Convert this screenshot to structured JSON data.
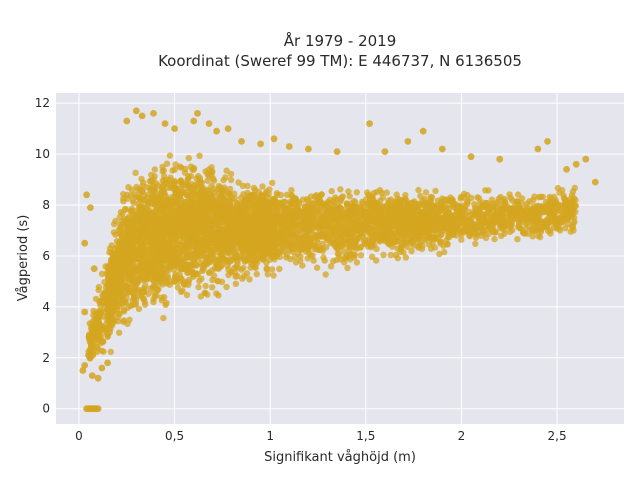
{
  "chart_data": {
    "type": "scatter",
    "title_lines": [
      "År 1979 - 2019",
      "Koordinat (Sweref 99 TM): E 446737, N 6136505"
    ],
    "xlabel": "Signifikant våghöjd (m)",
    "ylabel": "Vågperiod (s)",
    "xlim": [
      -0.12,
      2.85
    ],
    "ylim": [
      -0.6,
      12.4
    ],
    "x_ticks": [
      0,
      0.5,
      1,
      1.5,
      2,
      2.5
    ],
    "x_tick_labels": [
      "0",
      "0,5",
      "1",
      "1,5",
      "2",
      "2,5"
    ],
    "y_ticks": [
      0,
      2,
      4,
      6,
      8,
      10,
      12
    ],
    "y_tick_labels": [
      "0",
      "2",
      "4",
      "6",
      "8",
      "10",
      "12"
    ],
    "grid": true,
    "marker_color": "#D4A520",
    "plot_bg": "#E5E5EE",
    "points_summary": "Dense cloud; lower envelope rises from ~1.2 s at 0.07 m to ~6.5 s at 2.5 m; upper envelope ~11.5 s at 0.3-0.7 m; cluster at 0 s for 0.03-0.1 m",
    "points": [
      [
        0.04,
        0
      ],
      [
        0.05,
        0
      ],
      [
        0.06,
        0
      ],
      [
        0.07,
        0
      ],
      [
        0.08,
        0
      ],
      [
        0.09,
        0
      ],
      [
        0.1,
        0
      ],
      [
        0.02,
        1.5
      ],
      [
        0.03,
        1.7
      ],
      [
        0.05,
        2.1
      ],
      [
        0.07,
        1.3
      ],
      [
        0.1,
        1.2
      ],
      [
        0.12,
        1.6
      ],
      [
        0.15,
        1.8
      ],
      [
        0.03,
        3.8
      ],
      [
        0.03,
        6.5
      ],
      [
        0.04,
        8.4
      ],
      [
        0.06,
        7.9
      ],
      [
        0.08,
        5.5
      ],
      [
        0.3,
        11.7
      ],
      [
        0.33,
        11.5
      ],
      [
        0.39,
        11.6
      ],
      [
        0.25,
        11.3
      ],
      [
        0.45,
        11.2
      ],
      [
        0.5,
        11.0
      ],
      [
        0.6,
        11.3
      ],
      [
        0.62,
        11.6
      ],
      [
        0.68,
        11.2
      ],
      [
        0.72,
        10.9
      ],
      [
        0.78,
        11.0
      ],
      [
        0.85,
        10.5
      ],
      [
        0.95,
        10.4
      ],
      [
        1.02,
        10.6
      ],
      [
        1.1,
        10.3
      ],
      [
        1.2,
        10.2
      ],
      [
        1.35,
        10.1
      ],
      [
        1.52,
        11.2
      ],
      [
        1.6,
        10.1
      ],
      [
        1.72,
        10.5
      ],
      [
        1.8,
        10.9
      ],
      [
        1.9,
        10.2
      ],
      [
        2.05,
        9.9
      ],
      [
        2.2,
        9.8
      ],
      [
        2.4,
        10.2
      ],
      [
        2.45,
        10.5
      ],
      [
        2.55,
        9.4
      ],
      [
        2.6,
        9.6
      ],
      [
        2.65,
        9.8
      ],
      [
        2.7,
        8.9
      ]
    ]
  }
}
